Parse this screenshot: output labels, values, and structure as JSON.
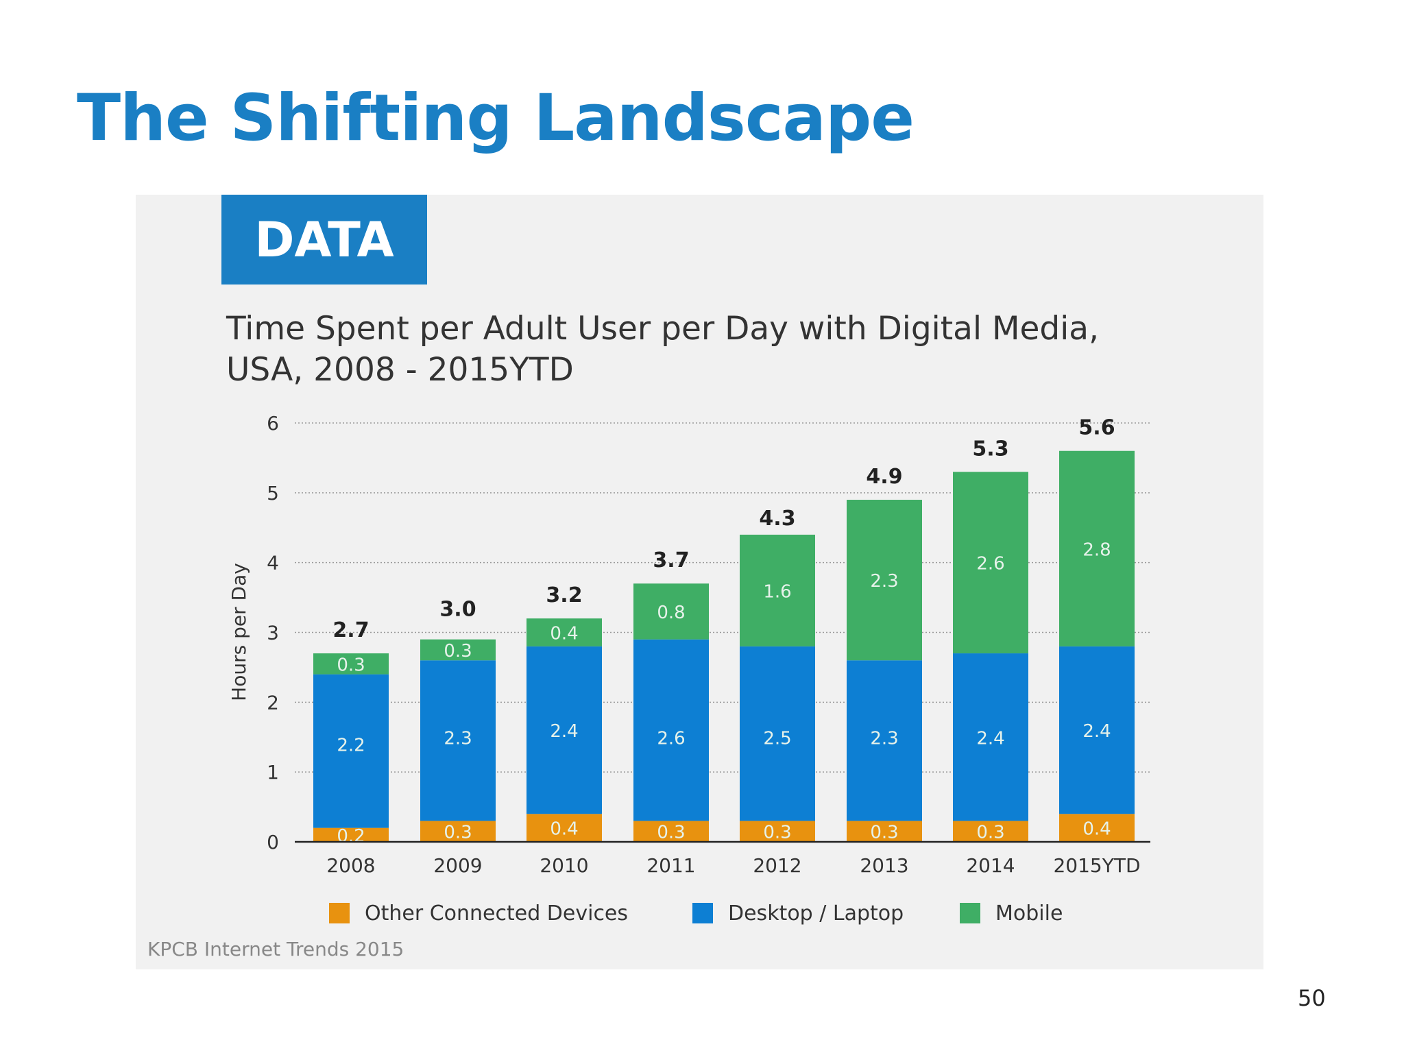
{
  "slide": {
    "title": "The Shifting Landscape",
    "page_number": "50",
    "badge": "DATA",
    "source": "KPCB Internet Trends 2015"
  },
  "colors": {
    "title": "#1a7fc4",
    "badge": "#1a7fc4",
    "panel": "#f1f1f1",
    "other": "#e8920f",
    "desktop": "#0d7fd3",
    "mobile": "#3fae65",
    "segment_label": "#e6f2ea"
  },
  "chart_data": {
    "type": "bar",
    "stacked": true,
    "title": [
      "Time Spent per Adult User per Day with Digital Media,",
      "USA, 2008 - 2015YTD"
    ],
    "xlabel": "",
    "ylabel": "Hours per Day",
    "ylim": [
      0,
      6
    ],
    "yticks": [
      "0",
      "1",
      "2",
      "3",
      "4",
      "5",
      "6"
    ],
    "grid": true,
    "legend_position": "bottom",
    "categories": [
      "2008",
      "2009",
      "2010",
      "2011",
      "2012",
      "2013",
      "2014",
      "2015YTD"
    ],
    "series": [
      {
        "name": "Other Connected Devices",
        "color": "#e8920f",
        "values": [
          0.2,
          0.3,
          0.4,
          0.3,
          0.3,
          0.3,
          0.3,
          0.4
        ],
        "labels": [
          "0.2",
          "0.3",
          "0.4",
          "0.3",
          "0.3",
          "0.3",
          "0.3",
          "0.4"
        ]
      },
      {
        "name": "Desktop / Laptop",
        "color": "#0d7fd3",
        "values": [
          2.2,
          2.3,
          2.4,
          2.6,
          2.5,
          2.3,
          2.4,
          2.4
        ],
        "labels": [
          "2.2",
          "2.3",
          "2.4",
          "2.6",
          "2.5",
          "2.3",
          "2.4",
          "2.4"
        ]
      },
      {
        "name": "Mobile",
        "color": "#3fae65",
        "values": [
          0.3,
          0.3,
          0.4,
          0.8,
          1.6,
          2.3,
          2.6,
          2.8
        ],
        "labels": [
          "0.3",
          "0.3",
          "0.4",
          "0.8",
          "1.6",
          "2.3",
          "2.6",
          "2.8"
        ]
      }
    ],
    "totals": [
      "2.7",
      "3.0",
      "3.2",
      "3.7",
      "4.3",
      "4.9",
      "5.3",
      "5.6"
    ],
    "total_values": [
      2.7,
      3.0,
      3.2,
      3.7,
      4.3,
      4.9,
      5.3,
      5.6
    ]
  }
}
